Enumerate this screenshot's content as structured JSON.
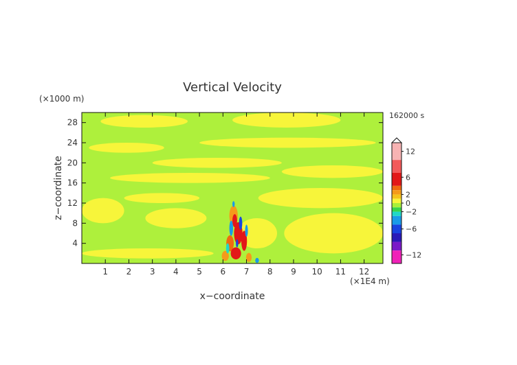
{
  "chart_data": {
    "type": "heatmap",
    "title": "Vertical Velocity",
    "time_label": "162000 s",
    "xlabel": "x−coordinate",
    "ylabel": "z−coordinate",
    "x_unit": "(×1E4 m)",
    "y_unit": "(×1000 m)",
    "xlim": [
      0,
      12.8
    ],
    "ylim": [
      0,
      30
    ],
    "x_ticks": [
      1,
      2,
      3,
      4,
      5,
      6,
      7,
      8,
      9,
      10,
      11,
      12
    ],
    "x_tick_labels": [
      "1",
      "2",
      "3",
      "4",
      "5",
      "6",
      "7",
      "8",
      "9",
      "10",
      "11",
      "12"
    ],
    "y_ticks": [
      4,
      8,
      12,
      16,
      20,
      24,
      28
    ],
    "y_tick_labels": [
      "4",
      "8",
      "12",
      "16",
      "20",
      "24",
      "28"
    ],
    "colorbar": {
      "range": [
        -14,
        14
      ],
      "tick_values": [
        12,
        6,
        2,
        0,
        -2,
        -6,
        -12
      ],
      "tick_labels": [
        "12",
        "6",
        "2",
        "0",
        "−2",
        "−6",
        "−12"
      ],
      "colors": [
        {
          "from": 10,
          "to": 14,
          "color": "#f7b3b3"
        },
        {
          "from": 7,
          "to": 10,
          "color": "#f35a5a"
        },
        {
          "from": 4,
          "to": 7,
          "color": "#e21818"
        },
        {
          "from": 3,
          "to": 4,
          "color": "#f06a10"
        },
        {
          "from": 2,
          "to": 3,
          "color": "#f59a1a"
        },
        {
          "from": 1,
          "to": 2,
          "color": "#f6c21a"
        },
        {
          "from": 0,
          "to": 1,
          "color": "#f7f53a"
        },
        {
          "from": -1,
          "to": 0,
          "color": "#a8f03a"
        },
        {
          "from": -2,
          "to": -1,
          "color": "#38d44a"
        },
        {
          "from": -3,
          "to": -2,
          "color": "#20d8c8"
        },
        {
          "from": -5,
          "to": -3,
          "color": "#1a9be8"
        },
        {
          "from": -7,
          "to": -5,
          "color": "#1a44e0"
        },
        {
          "from": -9,
          "to": -7,
          "color": "#2a1ab8"
        },
        {
          "from": -11,
          "to": -9,
          "color": "#7a1ac8"
        },
        {
          "from": -14,
          "to": -11,
          "color": "#f022b8"
        }
      ]
    },
    "field": {
      "background": "#aef03c",
      "positive_bands": [
        {
          "x0": 0.0,
          "x1": 5.6,
          "z0": 1.0,
          "z1": 3.0,
          "color": "#f7f53a"
        },
        {
          "x0": 2.7,
          "x1": 5.3,
          "z0": 7.0,
          "z1": 11.0,
          "color": "#f7f53a"
        },
        {
          "x0": 0.0,
          "x1": 1.8,
          "z0": 8.0,
          "z1": 13.0,
          "color": "#f7f53a"
        },
        {
          "x0": 1.8,
          "x1": 5.0,
          "z0": 12.0,
          "z1": 14.0,
          "color": "#f7f53a"
        },
        {
          "x0": 7.5,
          "x1": 12.8,
          "z0": 11.0,
          "z1": 15.0,
          "color": "#f7f53a"
        },
        {
          "x0": 8.6,
          "x1": 12.8,
          "z0": 2.0,
          "z1": 10.0,
          "color": "#f7f53a"
        },
        {
          "x0": 6.6,
          "x1": 8.3,
          "z0": 3.0,
          "z1": 9.0,
          "color": "#f7f53a"
        },
        {
          "x0": 1.2,
          "x1": 8.0,
          "z0": 16.0,
          "z1": 18.0,
          "color": "#f7f53a"
        },
        {
          "x0": 3.0,
          "x1": 8.5,
          "z0": 19.0,
          "z1": 21.0,
          "color": "#f7f53a"
        },
        {
          "x0": 0.3,
          "x1": 3.5,
          "z0": 22.0,
          "z1": 24.0,
          "color": "#f7f53a"
        },
        {
          "x0": 5.0,
          "x1": 12.5,
          "z0": 23.0,
          "z1": 25.0,
          "color": "#f7f53a"
        },
        {
          "x0": 0.8,
          "x1": 4.5,
          "z0": 27.0,
          "z1": 29.5,
          "color": "#f7f53a"
        },
        {
          "x0": 6.4,
          "x1": 11.0,
          "z0": 27.0,
          "z1": 30.0,
          "color": "#f7f53a"
        },
        {
          "x0": 8.5,
          "x1": 12.8,
          "z0": 17.0,
          "z1": 19.5,
          "color": "#f7f53a"
        }
      ],
      "plume_cells": [
        {
          "x": 6.45,
          "z": 9.5,
          "rx": 0.18,
          "rz": 2.0,
          "color": "#f59a1a"
        },
        {
          "x": 6.5,
          "z": 8.5,
          "rx": 0.1,
          "rz": 1.3,
          "color": "#e21818"
        },
        {
          "x": 6.65,
          "z": 6.0,
          "rx": 0.18,
          "rz": 2.2,
          "color": "#e21818"
        },
        {
          "x": 6.3,
          "z": 4.0,
          "rx": 0.16,
          "rz": 1.6,
          "color": "#f06a10"
        },
        {
          "x": 6.9,
          "z": 4.5,
          "rx": 0.12,
          "rz": 2.0,
          "color": "#e21818"
        },
        {
          "x": 6.1,
          "z": 1.5,
          "rx": 0.15,
          "rz": 1.0,
          "color": "#f59a1a"
        },
        {
          "x": 6.55,
          "z": 2.0,
          "rx": 0.22,
          "rz": 1.2,
          "color": "#e21818"
        },
        {
          "x": 7.1,
          "z": 1.2,
          "rx": 0.12,
          "rz": 0.9,
          "color": "#f59a1a"
        },
        {
          "x": 6.35,
          "z": 7.0,
          "rx": 0.08,
          "rz": 1.5,
          "color": "#1a9be8"
        },
        {
          "x": 6.75,
          "z": 8.0,
          "rx": 0.07,
          "rz": 1.3,
          "color": "#1a44e0"
        },
        {
          "x": 6.2,
          "z": 3.0,
          "rx": 0.07,
          "rz": 1.0,
          "color": "#20d8c8"
        },
        {
          "x": 7.0,
          "z": 6.5,
          "rx": 0.06,
          "rz": 1.2,
          "color": "#1a9be8"
        },
        {
          "x": 6.45,
          "z": 11.8,
          "rx": 0.05,
          "rz": 0.6,
          "color": "#1a9be8"
        },
        {
          "x": 6.6,
          "z": 4.0,
          "rx": 0.05,
          "rz": 0.8,
          "color": "#1a44e0"
        },
        {
          "x": 7.45,
          "z": 0.6,
          "rx": 0.08,
          "rz": 0.5,
          "color": "#1a9be8"
        }
      ]
    }
  }
}
